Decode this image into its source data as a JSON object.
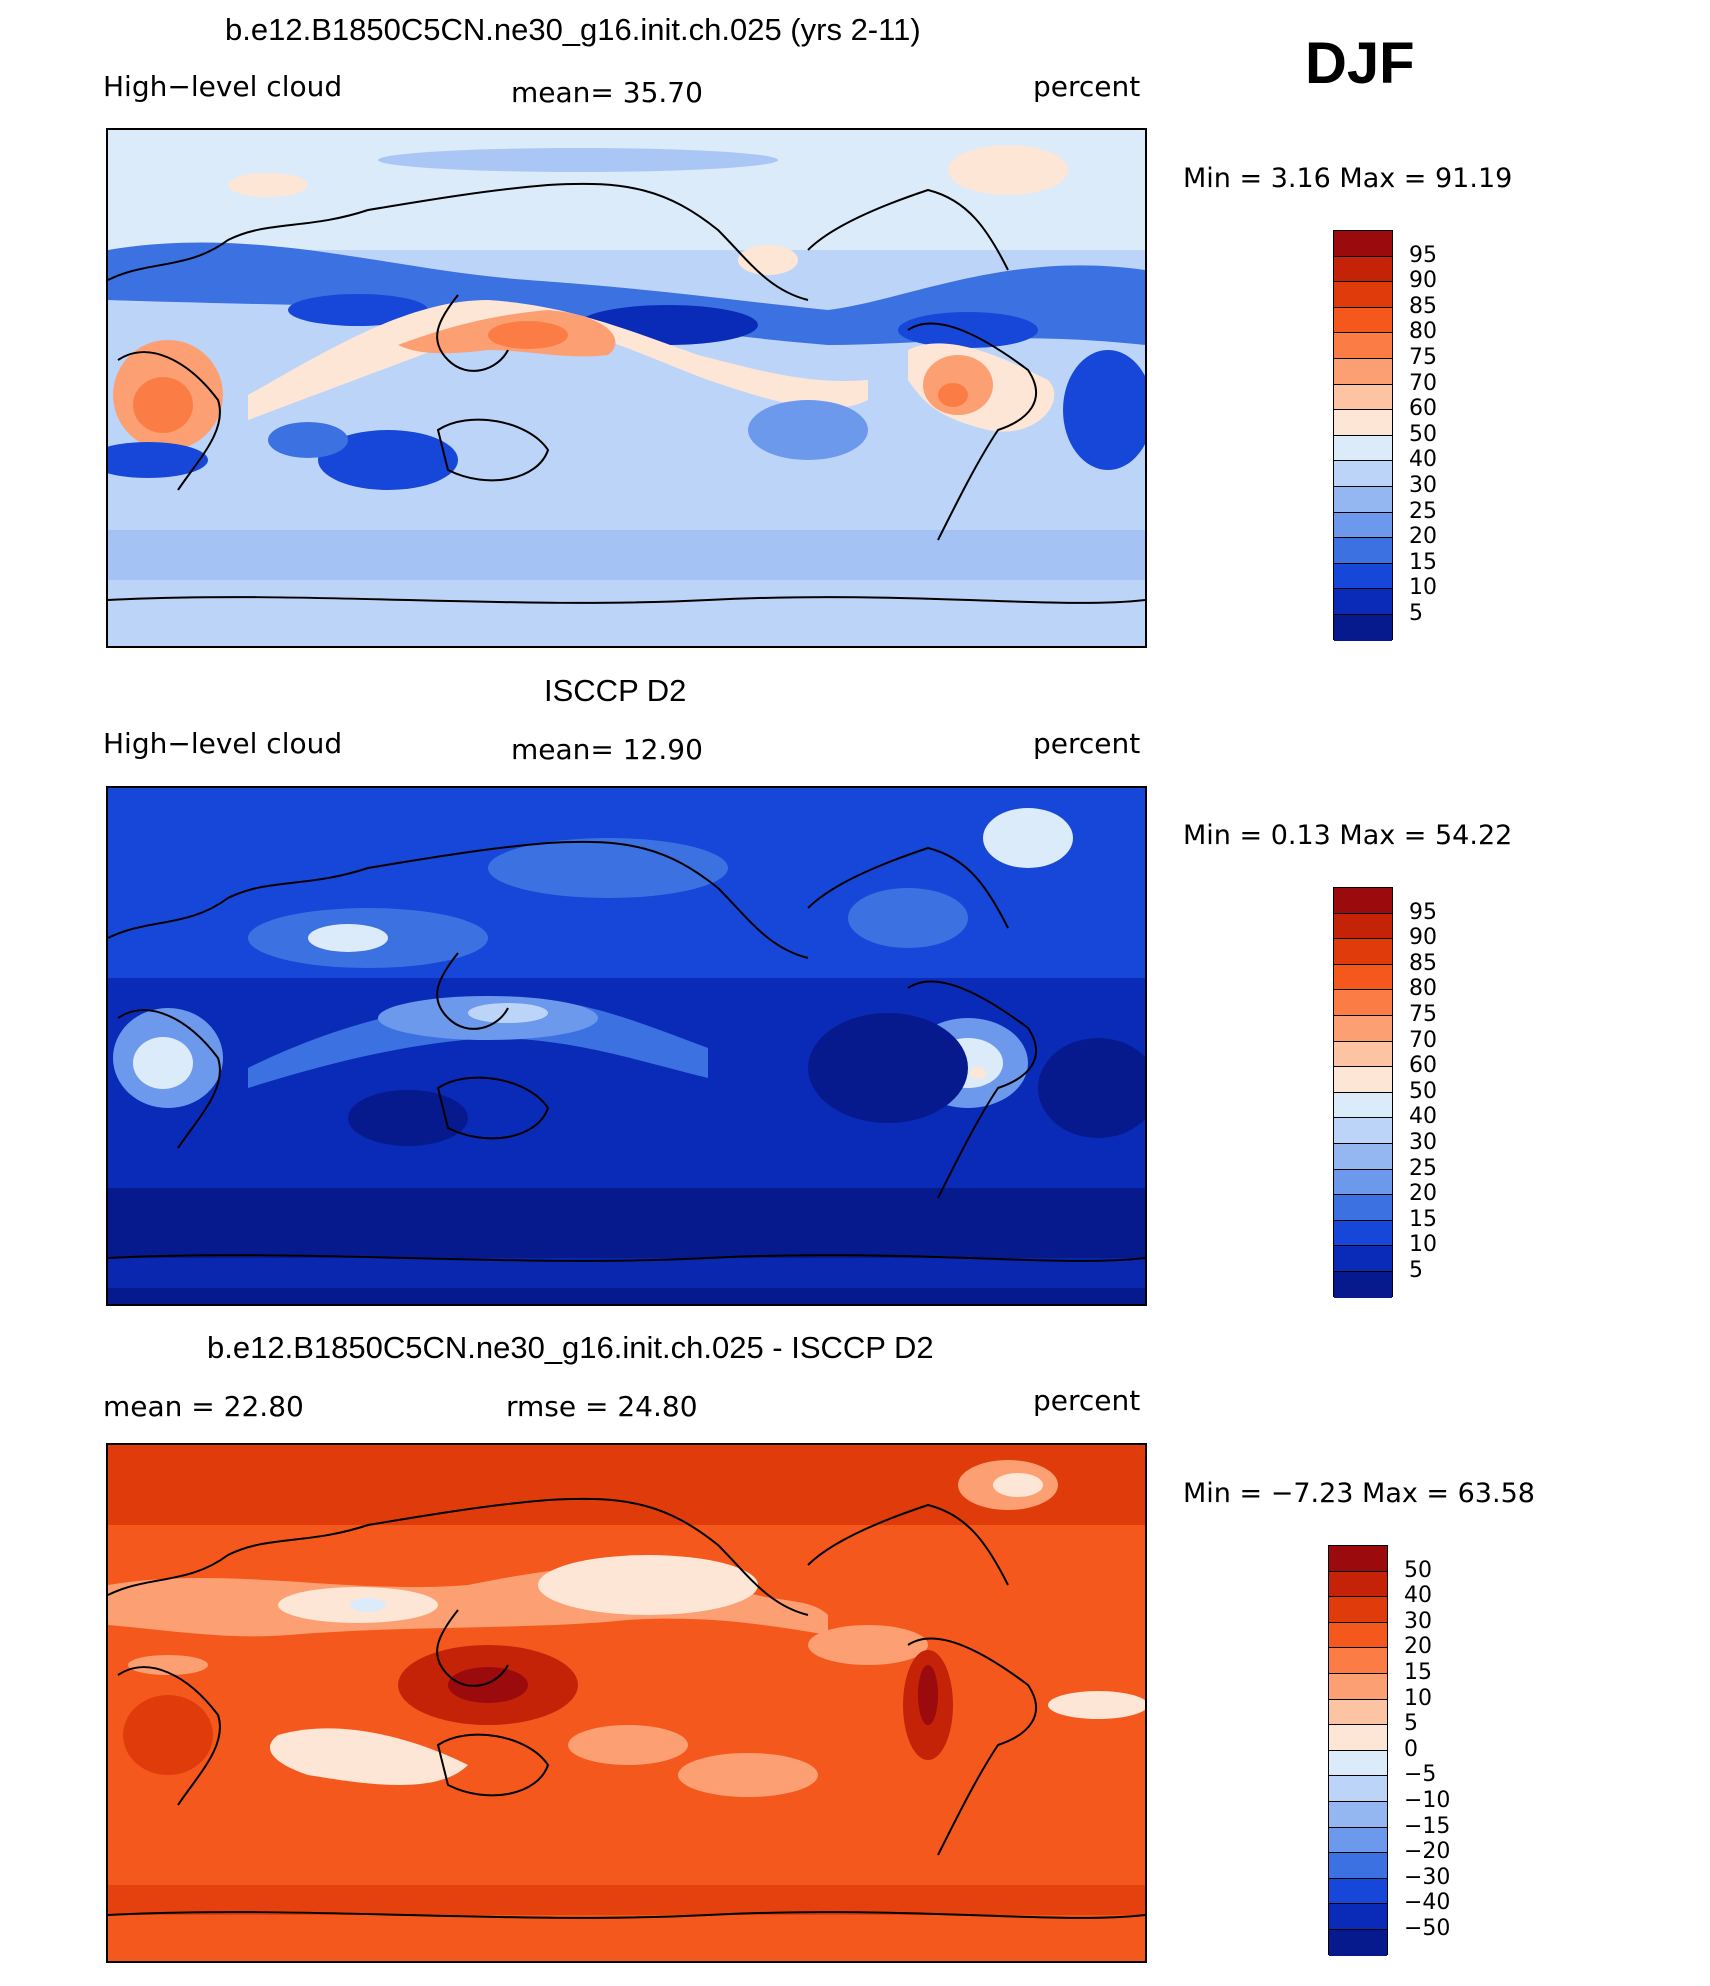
{
  "season": "DJF",
  "panels": [
    {
      "title": "b.e12.B1850C5CN.ne30_g16.init.ch.025 (yrs 2-11)",
      "left_label": "High−level cloud",
      "mid_label": "mean=   35.70",
      "units": "percent",
      "stats": "Min =    3.16  Max =    91.19",
      "levels": [
        "95",
        "90",
        "85",
        "80",
        "75",
        "70",
        "60",
        "50",
        "40",
        "30",
        "25",
        "20",
        "15",
        "10",
        "5"
      ],
      "colors": [
        "#9b0a0c",
        "#c42308",
        "#e03c0b",
        "#f5581d",
        "#fb7d45",
        "#fca073",
        "#fdc4a3",
        "#fde6d5",
        "#dcebfa",
        "#bcd4f7",
        "#94b7f2",
        "#6c99ec",
        "#3c71e2",
        "#1647d8",
        "#0a2bb8",
        "#061a8e"
      ]
    },
    {
      "title": "ISCCP D2",
      "left_label": "High−level cloud",
      "mid_label": "mean=   12.90",
      "units": "percent",
      "stats": "Min =    0.13  Max =    54.22",
      "levels": [
        "95",
        "90",
        "85",
        "80",
        "75",
        "70",
        "60",
        "50",
        "40",
        "30",
        "25",
        "20",
        "15",
        "10",
        "5"
      ],
      "colors": [
        "#9b0a0c",
        "#c42308",
        "#e03c0b",
        "#f5581d",
        "#fb7d45",
        "#fca073",
        "#fdc4a3",
        "#fde6d5",
        "#dcebfa",
        "#bcd4f7",
        "#94b7f2",
        "#6c99ec",
        "#3c71e2",
        "#1647d8",
        "#0a2bb8",
        "#061a8e"
      ]
    },
    {
      "title": "b.e12.B1850C5CN.ne30_g16.init.ch.025 - ISCCP D2",
      "left_label": "mean =    22.80",
      "mid_label": "rmse =    24.80",
      "units": "percent",
      "stats": "Min =   −7.23  Max =    63.58",
      "levels": [
        "50",
        "40",
        "30",
        "20",
        "15",
        "10",
        "5",
        "0",
        "−5",
        "−10",
        "−15",
        "−20",
        "−30",
        "−40",
        "−50"
      ],
      "colors": [
        "#9b0a0c",
        "#c42308",
        "#e03c0b",
        "#f5581d",
        "#fb7d45",
        "#fca073",
        "#fdc4a3",
        "#fde6d5",
        "#dcebfa",
        "#bcd4f7",
        "#94b7f2",
        "#6c99ec",
        "#3c71e2",
        "#1647d8",
        "#0a2bb8",
        "#061a8e"
      ]
    }
  ]
}
